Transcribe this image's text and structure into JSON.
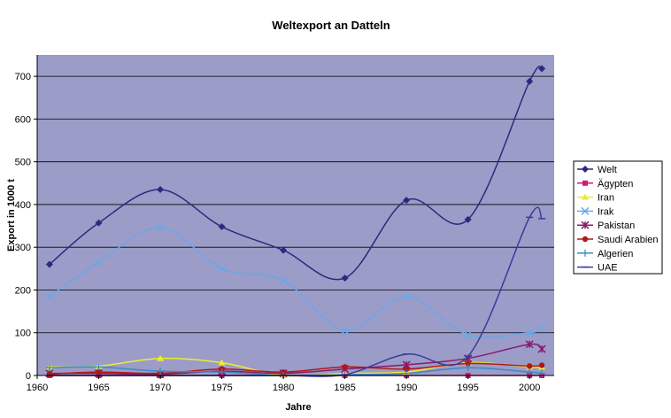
{
  "chart_data": {
    "type": "line",
    "title": "Weltexport an Datteln",
    "xlabel": "Jahre",
    "ylabel": "Export in 1000 t",
    "xlim": [
      1960,
      2002
    ],
    "ylim": [
      0,
      750
    ],
    "xticks": [
      "1960",
      "1965",
      "1970",
      "1975",
      "1980",
      "1985",
      "1990",
      "1995",
      "2000"
    ],
    "yticks": [
      "0",
      "100",
      "200",
      "300",
      "400",
      "500",
      "600",
      "700"
    ],
    "grid": true,
    "legend_position": "right",
    "plot_background": "#9c9cc8",
    "x": [
      1961,
      1965,
      1970,
      1975,
      1980,
      1985,
      1990,
      1995,
      2000,
      2001
    ],
    "series": [
      {
        "name": "Welt",
        "color": "#2a2a7e",
        "marker": "diamond",
        "values": [
          260,
          357,
          435,
          348,
          293,
          228,
          410,
          365,
          688,
          718
        ]
      },
      {
        "name": "Ägypten",
        "color": "#d2187a",
        "marker": "square",
        "values": [
          0,
          0,
          0,
          0,
          0,
          0,
          0,
          0,
          0,
          0
        ]
      },
      {
        "name": "Iran",
        "color": "#ecec30",
        "marker": "triangle",
        "values": [
          20,
          22,
          40,
          30,
          0,
          5,
          8,
          30,
          20,
          20
        ]
      },
      {
        "name": "Irak",
        "color": "#68a8e8",
        "marker": "x",
        "values": [
          185,
          265,
          347,
          250,
          222,
          105,
          185,
          95,
          100,
          110
        ]
      },
      {
        "name": "Pakistan",
        "color": "#8a1a6a",
        "marker": "star",
        "values": [
          5,
          5,
          3,
          10,
          5,
          15,
          25,
          40,
          73,
          62
        ]
      },
      {
        "name": "Saudi Arabien",
        "color": "#b01818",
        "marker": "circle",
        "values": [
          3,
          8,
          5,
          15,
          8,
          20,
          15,
          28,
          22,
          24
        ]
      },
      {
        "name": "Algerien",
        "color": "#3a8ac8",
        "marker": "plus",
        "values": [
          18,
          20,
          10,
          8,
          0,
          2,
          5,
          18,
          8,
          5
        ]
      },
      {
        "name": "UAE",
        "color": "#3a3aa0",
        "marker": "dash",
        "values": [
          0,
          0,
          0,
          0,
          0,
          2,
          50,
          45,
          370,
          367
        ]
      }
    ]
  }
}
